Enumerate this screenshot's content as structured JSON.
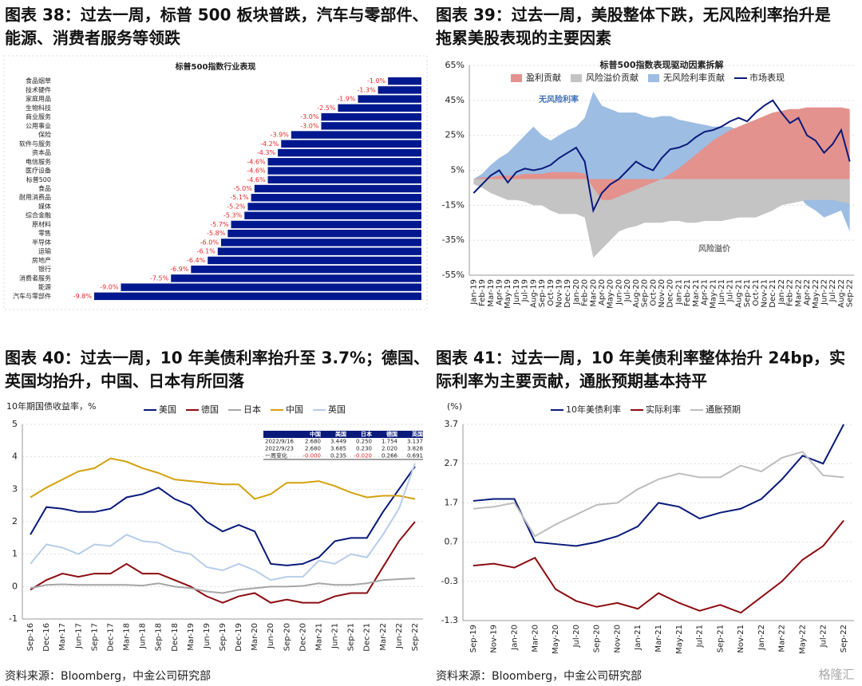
{
  "watermark": "格隆汇",
  "chart_data": [
    {
      "type": "bar",
      "caption": [
        "图表 38：过去一周，标普 500 板块普跌，汽车与零部件、",
        "能源、消费者服务等领跌"
      ],
      "title": "标普500指数行业表现",
      "categories": [
        "食品烟草",
        "技术硬件",
        "家庭用品",
        "生物科技",
        "商业服务",
        "公用事业",
        "保险",
        "软件与服务",
        "资本品",
        "电信服务",
        "医疗设备",
        "标普500",
        "食品",
        "耐用消费品",
        "媒体",
        "综合金融",
        "原材料",
        "零售",
        "半导体",
        "运输",
        "房地产",
        "银行",
        "消费者服务",
        "能源",
        "汽车与零部件"
      ],
      "values": [
        -1.0,
        -1.3,
        -1.9,
        -2.5,
        -3.0,
        -3.0,
        -3.9,
        -4.2,
        -4.3,
        -4.6,
        -4.6,
        -4.6,
        -5.0,
        -5.1,
        -5.2,
        -5.3,
        -5.7,
        -5.8,
        -6.0,
        -6.1,
        -6.4,
        -6.9,
        -7.5,
        -9.0,
        -9.8
      ],
      "value_labels": [
        "-1.0%",
        "-1.3%",
        "-1.9%",
        "-2.5%",
        "-3.0%",
        "-3.0%",
        "-3.9%",
        "-4.2%",
        "-4.3%",
        "-4.6%",
        "-4.6%",
        "-4.6%",
        "-5.0%",
        "-5.1%",
        "-5.2%",
        "-5.3%",
        "-5.7%",
        "-5.8%",
        "-6.0%",
        "-6.1%",
        "-6.4%",
        "-6.9%",
        "-7.5%",
        "-9.0%",
        "-9.8%"
      ],
      "color": "#00188f",
      "label_color": "#e8262b"
    },
    {
      "type": "area",
      "caption": [
        "图表 39：过去一周，美股整体下跌，无风险利率抬升是",
        "拖累美股表现的主要因素"
      ],
      "title": "标普500指数表现驱动因素拆解",
      "categories": [
        "Jan-19",
        "Feb-19",
        "Mar-19",
        "Apr-19",
        "May-19",
        "Jun-19",
        "Jul-19",
        "Aug-19",
        "Sep-19",
        "Oct-19",
        "Nov-19",
        "Dec-19",
        "Jan-20",
        "Feb-20",
        "Mar-20",
        "Apr-20",
        "May-20",
        "Jun-20",
        "Jul-20",
        "Aug-20",
        "Sep-20",
        "Oct-20",
        "Nov-20",
        "Dec-20",
        "Jan-21",
        "Feb-21",
        "Mar-21",
        "Apr-21",
        "May-21",
        "Jun-21",
        "Jul-21",
        "Aug-21",
        "Sep-21",
        "Oct-21",
        "Nov-21",
        "Dec-21",
        "Jan-22",
        "Feb-22",
        "Mar-22",
        "Apr-22",
        "May-22",
        "Jun-22",
        "Jul-22",
        "Aug-22",
        "Sep-22"
      ],
      "series": [
        {
          "name": "盈利贡献",
          "style": "area",
          "color": "#e3928e",
          "values": [
            0,
            1,
            1,
            2,
            2,
            2,
            3,
            3,
            3,
            4,
            4,
            4,
            4,
            3,
            -5,
            -12,
            -12,
            -10,
            -8,
            -6,
            -4,
            -2,
            0,
            3,
            6,
            10,
            14,
            18,
            22,
            25,
            28,
            30,
            32,
            34,
            36,
            38,
            39,
            40,
            40,
            41,
            41,
            41,
            41,
            41,
            40
          ]
        },
        {
          "name": "风险溢价贡献",
          "style": "area",
          "color": "#c4c4c4",
          "values": [
            -3,
            -5,
            -8,
            -10,
            -12,
            -12,
            -13,
            -15,
            -15,
            -18,
            -20,
            -20,
            -20,
            -22,
            -45,
            -40,
            -35,
            -30,
            -28,
            -27,
            -25,
            -25,
            -25,
            -24,
            -24,
            -25,
            -25,
            -24,
            -24,
            -24,
            -23,
            -22,
            -22,
            -22,
            -20,
            -18,
            -15,
            -14,
            -13,
            -12,
            -12,
            -12,
            -12,
            -13,
            -14
          ]
        },
        {
          "name": "无风险利率贡献",
          "style": "area",
          "color": "#9dbde3",
          "values": [
            0,
            3,
            8,
            12,
            15,
            20,
            25,
            30,
            25,
            22,
            25,
            28,
            30,
            35,
            50,
            42,
            40,
            38,
            38,
            38,
            36,
            35,
            36,
            36,
            34,
            33,
            32,
            31,
            30,
            30,
            30,
            28,
            25,
            22,
            20,
            15,
            10,
            0,
            -10,
            -15,
            -18,
            -22,
            -20,
            -18,
            -30
          ]
        },
        {
          "name": "市场表现",
          "style": "line",
          "color": "#0a1a7a",
          "values": [
            -8,
            -3,
            2,
            5,
            -2,
            4,
            6,
            5,
            6,
            8,
            12,
            15,
            18,
            10,
            -18,
            -8,
            -3,
            0,
            5,
            10,
            7,
            5,
            12,
            17,
            18,
            20,
            24,
            27,
            28,
            30,
            33,
            35,
            33,
            38,
            42,
            45,
            38,
            32,
            35,
            25,
            22,
            15,
            20,
            28,
            10
          ]
        }
      ],
      "annotations": [
        {
          "text": "无风险利率",
          "color": "#3f6fb5"
        },
        {
          "text": "风险溢价",
          "color": "#777777"
        }
      ],
      "ylim": [
        -55,
        65
      ],
      "yticks": [
        {
          "value": -55,
          "label": "-55%"
        },
        {
          "value": -35,
          "label": "-35%"
        },
        {
          "value": -15,
          "label": "-15%"
        },
        {
          "value": 5,
          "label": "5%"
        },
        {
          "value": 25,
          "label": "25%"
        },
        {
          "value": 45,
          "label": "45%"
        },
        {
          "value": 65,
          "label": "65%"
        }
      ],
      "grid": true
    },
    {
      "type": "line",
      "caption": [
        "图表 40：过去一周，10 年美债利率抬升至 3.7%；德国、",
        "英国均抬升，中国、日本有所回落"
      ],
      "y_label": "10年期国债收益率，%",
      "categories": [
        "Sep-16",
        "Dec-16",
        "Mar-17",
        "Jun-17",
        "Sep-17",
        "Dec-17",
        "Mar-18",
        "Jun-18",
        "Sep-18",
        "Dec-18",
        "Mar-19",
        "Jun-19",
        "Sep-19",
        "Dec-19",
        "Mar-20",
        "Jun-20",
        "Sep-20",
        "Dec-20",
        "Mar-21",
        "Jun-21",
        "Sep-21",
        "Dec-21",
        "Mar-22",
        "Jun-22",
        "Sep-22"
      ],
      "series": [
        {
          "name": "美国",
          "color": "#0a1a7a",
          "values": [
            1.6,
            2.45,
            2.4,
            2.3,
            2.3,
            2.4,
            2.75,
            2.85,
            3.05,
            2.7,
            2.5,
            2.0,
            1.7,
            1.9,
            1.7,
            0.7,
            0.65,
            0.7,
            0.9,
            1.4,
            1.5,
            1.5,
            2.3,
            3.0,
            3.7
          ]
        },
        {
          "name": "德国",
          "color": "#8b0d12",
          "values": [
            -0.1,
            0.2,
            0.4,
            0.3,
            0.4,
            0.4,
            0.7,
            0.4,
            0.4,
            0.2,
            0.0,
            -0.3,
            -0.5,
            -0.3,
            -0.2,
            -0.5,
            -0.4,
            -0.5,
            -0.5,
            -0.3,
            -0.2,
            -0.2,
            0.6,
            1.4,
            2.0
          ]
        },
        {
          "name": "日本",
          "color": "#a6a6a6",
          "values": [
            -0.05,
            0.05,
            0.07,
            0.05,
            0.05,
            0.05,
            0.05,
            0.03,
            0.1,
            0.0,
            -0.05,
            -0.15,
            -0.2,
            -0.1,
            -0.05,
            0.0,
            0.0,
            0.02,
            0.1,
            0.05,
            0.05,
            0.1,
            0.2,
            0.23,
            0.25
          ]
        },
        {
          "name": "中国",
          "color": "#d4a20e",
          "values": [
            2.75,
            3.05,
            3.3,
            3.55,
            3.65,
            3.95,
            3.85,
            3.65,
            3.5,
            3.3,
            3.25,
            3.2,
            3.15,
            3.15,
            2.7,
            2.85,
            3.2,
            3.2,
            3.25,
            3.1,
            2.9,
            2.75,
            2.8,
            2.8,
            2.7
          ]
        },
        {
          "name": "英国",
          "color": "#b7cde9",
          "values": [
            0.7,
            1.3,
            1.2,
            1.0,
            1.3,
            1.25,
            1.6,
            1.4,
            1.35,
            1.1,
            1.0,
            0.6,
            0.5,
            0.7,
            0.5,
            0.2,
            0.3,
            0.3,
            0.8,
            0.7,
            1.0,
            0.9,
            1.6,
            2.4,
            3.8
          ]
        }
      ],
      "table": {
        "header": [
          "中国",
          "美国",
          "日本",
          "德国",
          "英国"
        ],
        "rows": [
          [
            "2022/9/16",
            "2.680",
            "3.449",
            "0.250",
            "1.754",
            "3.137"
          ],
          [
            "2022/9/23",
            "2.680",
            "3.685",
            "0.230",
            "2.020",
            "3.828"
          ],
          [
            "一周变化",
            "-0.000",
            "0.235",
            "-0.020",
            "0.266",
            "0.691"
          ]
        ]
      },
      "ylim": [
        -1,
        5
      ],
      "yticks": [
        -1,
        0,
        1,
        2,
        3,
        4,
        5
      ],
      "grid": true,
      "source": "资料来源：Bloomberg，中金公司研究部"
    },
    {
      "type": "line",
      "caption": [
        "图表 41：过去一周，10 年美债利率整体抬升 24bp，实",
        "际利率为主要贡献，通胀预期基本持平"
      ],
      "y_label": "(%)",
      "categories": [
        "Sep-19",
        "Nov-19",
        "Jan-20",
        "Mar-20",
        "May-20",
        "Jul-20",
        "Sep-20",
        "Nov-20",
        "Jan-21",
        "Mar-21",
        "May-21",
        "Jul-21",
        "Sep-21",
        "Nov-21",
        "Jan-22",
        "Mar-22",
        "May-22",
        "Jul-22",
        "Sep-22"
      ],
      "series": [
        {
          "name": "10年美债利率",
          "color": "#0a1a7a",
          "values": [
            1.75,
            1.8,
            1.8,
            0.7,
            0.65,
            0.6,
            0.7,
            0.85,
            1.1,
            1.7,
            1.6,
            1.3,
            1.45,
            1.55,
            1.8,
            2.3,
            2.9,
            2.7,
            3.7
          ]
        },
        {
          "name": "实际利率",
          "color": "#8b0d12",
          "values": [
            0.1,
            0.15,
            0.05,
            0.3,
            -0.5,
            -0.8,
            -0.95,
            -0.85,
            -1.0,
            -0.6,
            -0.85,
            -1.05,
            -0.9,
            -1.1,
            -0.7,
            -0.3,
            0.25,
            0.6,
            1.25
          ]
        },
        {
          "name": "通胀预期",
          "color": "#bdbdbd",
          "values": [
            1.55,
            1.6,
            1.7,
            0.85,
            1.15,
            1.4,
            1.65,
            1.7,
            2.05,
            2.3,
            2.45,
            2.35,
            2.35,
            2.65,
            2.5,
            2.85,
            3.0,
            2.4,
            2.35
          ]
        }
      ],
      "ylim": [
        -1.3,
        3.7
      ],
      "yticks": [
        -1.3,
        -0.3,
        0.7,
        1.7,
        2.7,
        3.7
      ],
      "grid": true,
      "source": "资料来源：Bloomberg，中金公司研究部"
    }
  ]
}
